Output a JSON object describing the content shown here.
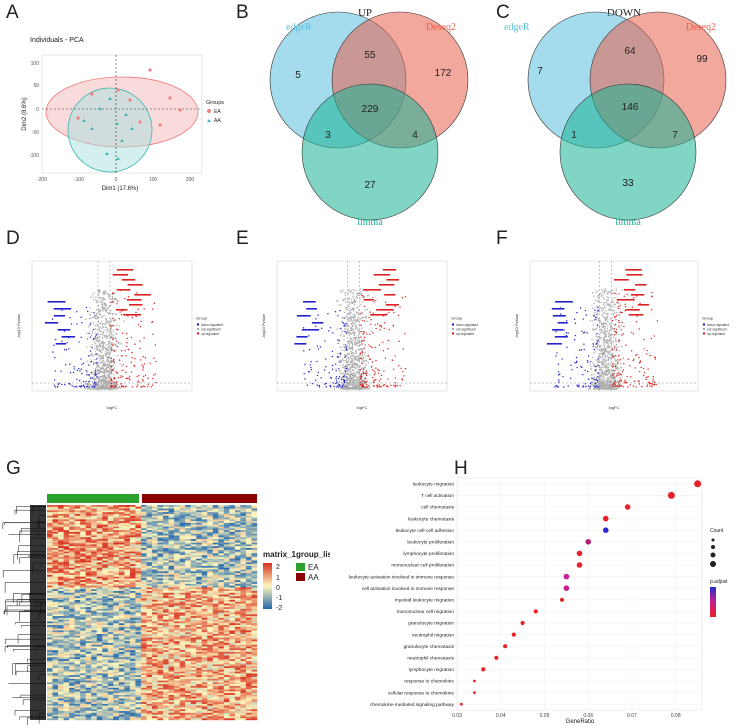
{
  "panels": {
    "a": "A",
    "b": "B",
    "c": "C",
    "d": "D",
    "e": "E",
    "f": "F",
    "g": "G",
    "h": "H"
  },
  "pca": {
    "title": "Individuals - PCA",
    "xlabel": "Dim1 (17.6%)",
    "ylabel": "Dim2 (8.6%)",
    "xticks": [
      "-200",
      "-100",
      "0",
      "100",
      "200"
    ],
    "yticks": [
      "100",
      "50",
      "0",
      "-50",
      "-100"
    ],
    "legend_title": "Groups",
    "groups": [
      {
        "name": "EA",
        "color": "#f08080"
      },
      {
        "name": "AA",
        "color": "#3cb8b0"
      }
    ]
  },
  "venn_up": {
    "title": "UP",
    "sets": {
      "a": "edgeR",
      "b": "Deseq2",
      "c": "limma"
    },
    "counts": {
      "a_only": "5",
      "ab": "55",
      "b_only": "172",
      "abc": "229",
      "ac": "3",
      "bc": "4",
      "c_only": "27"
    },
    "colors": {
      "a": "#5bc0de",
      "b": "#e8604c",
      "c": "#1ab394"
    }
  },
  "venn_down": {
    "title": "DOWN",
    "sets": {
      "a": "edgeR",
      "b": "Deseq2",
      "c": "limma"
    },
    "counts": {
      "a_only": "7",
      "ab": "64",
      "b_only": "99",
      "abc": "146",
      "ac": "1",
      "bc": "7",
      "c_only": "33"
    },
    "colors": {
      "a": "#5bc0de",
      "b": "#e8604c",
      "c": "#1ab394"
    }
  },
  "volcano": {
    "xlabel": "logFC",
    "ylabel": "-log10 Pvalue",
    "legend_title": "Group",
    "legend_items": [
      "down-regulated",
      "not-significant",
      "up-regulated"
    ],
    "colors": {
      "down": "#2222cc",
      "ns": "#aaaaaa",
      "up": "#dd2222"
    }
  },
  "heatmap": {
    "legend_title": "matrix_1",
    "legend_ticks": [
      "2",
      "1",
      "0",
      "-1",
      "-2"
    ],
    "group_title": "group_list",
    "groups": [
      {
        "name": "EA",
        "color": "#2ca02c"
      },
      {
        "name": "AA",
        "color": "#8b0000"
      }
    ]
  },
  "dotplot": {
    "xlabel": "GeneRatio",
    "xticks": [
      "0.03",
      "0.04",
      "0.05",
      "0.06",
      "0.07",
      "0.08"
    ],
    "legend_count_title": "Count",
    "legend_p_title": "p.adjust",
    "chart_data": {
      "type": "scatter",
      "title": "",
      "xlabel": "GeneRatio",
      "ylabel": "",
      "xlim": [
        0.03,
        0.086
      ],
      "categories": [
        "leukocyte migration",
        "T cell activation",
        "cell chemotaxis",
        "leukocyte chemotaxis",
        "leukocyte cell-cell adhesion",
        "leukocyte proliferation",
        "lymphocyte proliferation",
        "mononuclear cell proliferation",
        "leukocyte activation involved in immune response",
        "cell activation involved in immune response",
        "myeloid leukocyte migration",
        "mononuclear cell migration",
        "granulocyte migration",
        "neutrophil migration",
        "granulocyte chemotaxis",
        "neutrophil chemotaxis",
        "lymphocyte migration",
        "response to chemokine",
        "cellular response to chemokine",
        "chemokine-mediated signaling pathway"
      ],
      "values": [
        0.085,
        0.079,
        0.069,
        0.064,
        0.064,
        0.06,
        0.058,
        0.058,
        0.055,
        0.055,
        0.054,
        0.048,
        0.045,
        0.043,
        0.041,
        0.039,
        0.036,
        0.034,
        0.034,
        0.031
      ],
      "colors": [
        "#e8202a",
        "#e8202a",
        "#e8202a",
        "#e8202a",
        "#2a2ad0",
        "#b0207a",
        "#e8202a",
        "#e8202a",
        "#c81e90",
        "#c81e90",
        "#e8202a",
        "#e8202a",
        "#e8202a",
        "#e8202a",
        "#e8202a",
        "#e8202a",
        "#e8202a",
        "#e8202a",
        "#e8202a",
        "#e8202a"
      ],
      "sizes": [
        5,
        5,
        4,
        4,
        4,
        4,
        4,
        4,
        4,
        4,
        3,
        3,
        3,
        3,
        3,
        3,
        3,
        2,
        2,
        2
      ]
    }
  }
}
